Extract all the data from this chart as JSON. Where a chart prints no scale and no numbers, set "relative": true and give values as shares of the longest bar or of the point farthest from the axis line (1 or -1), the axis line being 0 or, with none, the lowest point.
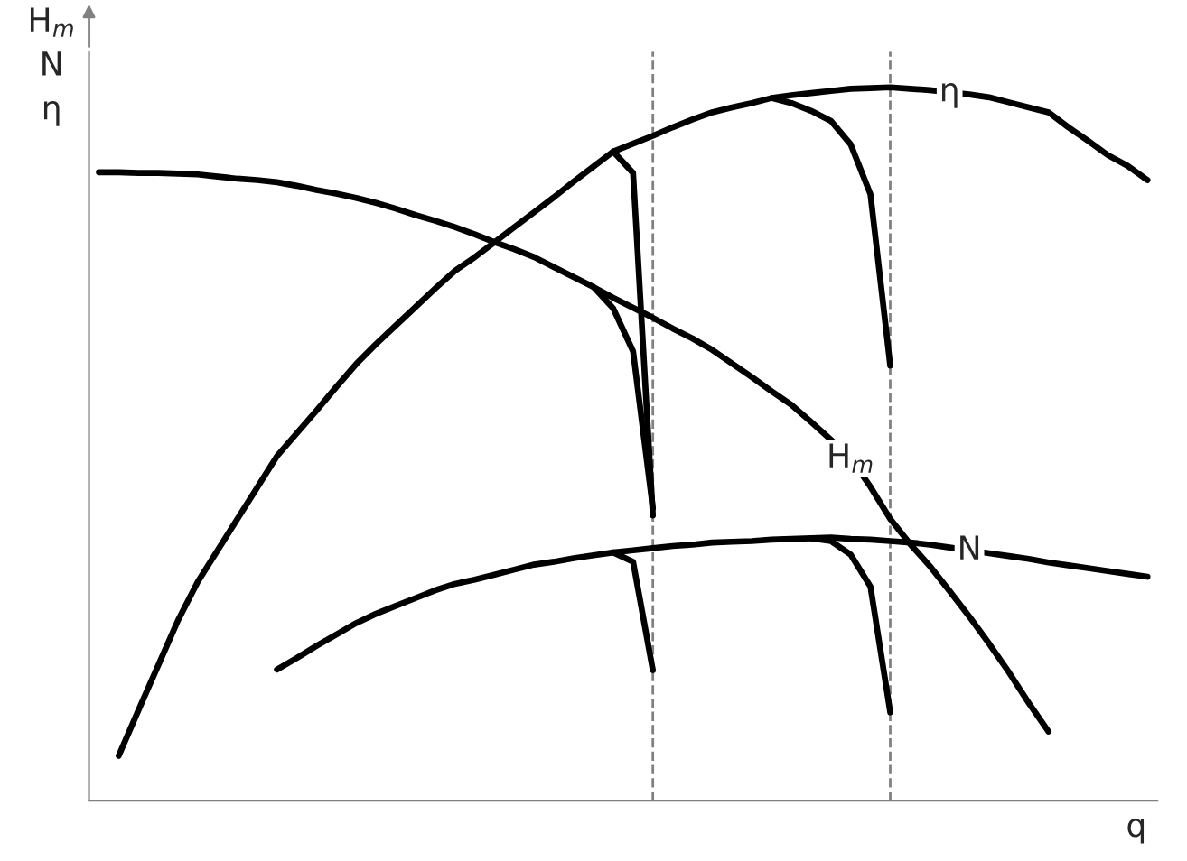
{
  "chart_data": {
    "type": "line",
    "relative": true,
    "ylabel": "H$_{m}$\nN\nη",
    "xlabel": "q",
    "marker": "none",
    "line_style": "solid",
    "categories": [
      null,
      null,
      null,
      null,
      null,
      null,
      null,
      null,
      null,
      null,
      null,
      null,
      null,
      null,
      null,
      null,
      null,
      null,
      null,
      null,
      null,
      null,
      null,
      null,
      null,
      null,
      null,
      null,
      null,
      null,
      null,
      null,
      null,
      null,
      null,
      null,
      null,
      null,
      null,
      null,
      null,
      null,
      null,
      null,
      null,
      null,
      null,
      null,
      null,
      null,
      null,
      null,
      null,
      null
    ],
    "series": [
      {
        "name": "η",
        "color": "#000000",
        "values": [
          null,
          0.063,
          0.127,
          0.19,
          0.253,
          0.307,
          0.351,
          0.395,
          0.439,
          0.483,
          0.515,
          0.547,
          0.58,
          0.612,
          0.64,
          0.666,
          0.692,
          0.718,
          0.743,
          0.762,
          0.783,
          0.804,
          0.825,
          0.846,
          0.868,
          0.889,
          0.91,
          0.921,
          0.932,
          0.944,
          0.955,
          0.965,
          0.972,
          0.978,
          0.985,
          0.989,
          0.992,
          0.995,
          0.998,
          0.999,
          1.0,
          0.998,
          0.996,
          0.993,
          0.99,
          0.986,
          0.979,
          0.972,
          0.965,
          0.944,
          0.925,
          0.905,
          0.89,
          0.87
        ]
      },
      {
        "color": "#000000",
        "values": [
          null,
          null,
          null,
          null,
          null,
          null,
          null,
          null,
          null,
          null,
          null,
          null,
          null,
          null,
          null,
          null,
          null,
          null,
          null,
          null,
          null,
          null,
          null,
          null,
          null,
          null,
          0.91,
          0.88,
          0.4,
          null,
          null,
          null,
          null,
          null,
          null,
          null,
          null,
          null,
          null,
          null,
          null,
          null,
          null,
          null,
          null,
          null,
          null,
          null,
          null,
          null,
          null,
          null,
          null,
          null
        ]
      },
      {
        "color": "#000000",
        "values": [
          null,
          null,
          null,
          null,
          null,
          null,
          null,
          null,
          null,
          null,
          null,
          null,
          null,
          null,
          null,
          null,
          null,
          null,
          null,
          null,
          null,
          null,
          null,
          null,
          null,
          null,
          null,
          null,
          null,
          null,
          null,
          null,
          null,
          null,
          0.985,
          0.978,
          0.967,
          0.953,
          0.92,
          0.85,
          0.61,
          null,
          null,
          null,
          null,
          null,
          null,
          null,
          null,
          null,
          null,
          null,
          null,
          null
        ]
      },
      {
        "name": "H$_{m}$",
        "color": "#000000",
        "values": [
          0.881,
          0.881,
          0.88,
          0.88,
          0.879,
          0.878,
          0.875,
          0.872,
          0.87,
          0.867,
          0.862,
          0.856,
          0.851,
          0.845,
          0.838,
          0.83,
          0.821,
          0.813,
          0.804,
          0.794,
          0.783,
          0.773,
          0.762,
          0.748,
          0.734,
          0.72,
          0.705,
          0.691,
          0.677,
          0.662,
          0.648,
          0.632,
          0.613,
          0.594,
          0.574,
          0.555,
          0.531,
          0.506,
          0.48,
          0.44,
          0.395,
          0.36,
          0.329,
          0.294,
          0.258,
          0.22,
          0.18,
          0.137,
          0.097,
          null,
          null,
          null,
          null,
          null
        ]
      },
      {
        "color": "#000000",
        "values": [
          null,
          null,
          null,
          null,
          null,
          null,
          null,
          null,
          null,
          null,
          null,
          null,
          null,
          null,
          null,
          null,
          null,
          null,
          null,
          null,
          null,
          null,
          null,
          null,
          null,
          0.72,
          0.69,
          0.63,
          0.41,
          null,
          null,
          null,
          null,
          null,
          null,
          null,
          null,
          null,
          null,
          null,
          null,
          null,
          null,
          null,
          null,
          null,
          null,
          null,
          null,
          null,
          null,
          null,
          null,
          null
        ]
      },
      {
        "name": "N",
        "color": "#000000",
        "values": [
          null,
          null,
          null,
          null,
          null,
          null,
          null,
          null,
          null,
          0.184,
          0.2,
          0.217,
          0.233,
          0.249,
          0.262,
          0.273,
          0.284,
          0.295,
          0.304,
          0.31,
          0.317,
          0.324,
          0.331,
          0.335,
          0.34,
          0.344,
          0.348,
          0.351,
          0.354,
          0.357,
          0.359,
          0.362,
          0.363,
          0.364,
          0.366,
          0.367,
          0.368,
          0.369,
          0.367,
          0.366,
          0.364,
          0.362,
          0.359,
          0.355,
          0.351,
          0.347,
          0.343,
          0.339,
          0.334,
          0.33,
          0.326,
          0.322,
          0.318,
          0.314
        ]
      },
      {
        "color": "#000000",
        "values": [
          null,
          null,
          null,
          null,
          null,
          null,
          null,
          null,
          null,
          null,
          null,
          null,
          null,
          null,
          null,
          null,
          null,
          null,
          null,
          null,
          null,
          null,
          null,
          null,
          null,
          null,
          0.348,
          0.335,
          0.183,
          null,
          null,
          null,
          null,
          null,
          null,
          null,
          null,
          null,
          null,
          null,
          null,
          null,
          null,
          null,
          null,
          null,
          null,
          null,
          null,
          null,
          null,
          null,
          null,
          null
        ]
      },
      {
        "color": "#000000",
        "values": [
          null,
          null,
          null,
          null,
          null,
          null,
          null,
          null,
          null,
          null,
          null,
          null,
          null,
          null,
          null,
          null,
          null,
          null,
          null,
          null,
          null,
          null,
          null,
          null,
          null,
          null,
          null,
          null,
          null,
          null,
          null,
          null,
          null,
          null,
          null,
          null,
          0.368,
          0.364,
          0.345,
          0.3,
          0.124,
          null,
          null,
          null,
          null,
          null,
          null,
          null,
          null,
          null,
          null,
          null,
          null,
          null
        ]
      }
    ]
  }
}
